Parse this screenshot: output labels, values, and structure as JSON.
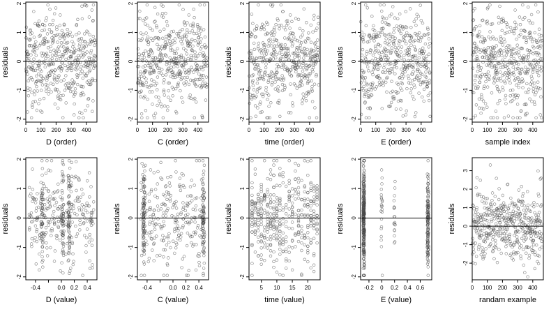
{
  "chart_data": [
    {
      "type": "scatter",
      "xlabel": "D (order)",
      "ylabel": "residuals",
      "xlim": [
        0,
        470
      ],
      "ylim": [
        -2.1,
        2.05
      ],
      "xticks": [
        0,
        100,
        200,
        300,
        400
      ],
      "yticks": [
        -2,
        -1,
        0,
        1,
        2
      ],
      "x_dist": "index",
      "ref_line": 0,
      "n_points": 460
    },
    {
      "type": "scatter",
      "xlabel": "C (order)",
      "ylabel": "residuals",
      "xlim": [
        0,
        470
      ],
      "ylim": [
        -2.1,
        2.05
      ],
      "xticks": [
        0,
        100,
        200,
        300,
        400
      ],
      "yticks": [
        -2,
        -1,
        0,
        1,
        2
      ],
      "x_dist": "index",
      "ref_line": 0,
      "n_points": 460
    },
    {
      "type": "scatter",
      "xlabel": "time (order)",
      "ylabel": "residuals",
      "xlim": [
        0,
        470
      ],
      "ylim": [
        -2.1,
        2.05
      ],
      "xticks": [
        0,
        100,
        200,
        300,
        400
      ],
      "yticks": [
        -2,
        -1,
        0,
        1,
        2
      ],
      "x_dist": "index",
      "ref_line": 0,
      "n_points": 460
    },
    {
      "type": "scatter",
      "xlabel": "E (order)",
      "ylabel": "residuals",
      "xlim": [
        0,
        470
      ],
      "ylim": [
        -2.1,
        2.05
      ],
      "xticks": [
        0,
        100,
        200,
        300,
        400
      ],
      "yticks": [
        -2,
        -1,
        0,
        1,
        2
      ],
      "x_dist": "index",
      "ref_line": 0,
      "n_points": 460
    },
    {
      "type": "scatter",
      "xlabel": "sample index",
      "ylabel": "residuals",
      "xlim": [
        0,
        470
      ],
      "ylim": [
        -2.1,
        2.05
      ],
      "xticks": [
        0,
        100,
        200,
        300,
        400
      ],
      "yticks": [
        -2,
        -1,
        0,
        1,
        2
      ],
      "x_dist": "index",
      "ref_line": 0,
      "n_points": 460
    },
    {
      "type": "scatter",
      "xlabel": "D (value)",
      "ylabel": "residuals",
      "xlim": [
        -0.55,
        0.55
      ],
      "ylim": [
        -2.1,
        2.05
      ],
      "xticks": [
        -0.4,
        -0.2,
        0.0,
        0.2,
        0.4
      ],
      "xtick_labels": [
        "-0.4",
        "",
        "0.0",
        "0.2",
        "0.4"
      ],
      "yticks": [
        -2,
        -1,
        0,
        1,
        2
      ],
      "x_dist": "uniform",
      "x_range": [
        -0.5,
        0.5
      ],
      "x_clusters": [
        -0.3,
        0.02,
        0.12
      ],
      "ref_line": 0,
      "n_points": 420
    },
    {
      "type": "scatter",
      "xlabel": "C (value)",
      "ylabel": "residuals",
      "xlim": [
        -0.55,
        0.55
      ],
      "ylim": [
        -2.1,
        2.05
      ],
      "xticks": [
        -0.4,
        -0.2,
        0.0,
        0.2,
        0.4
      ],
      "xtick_labels": [
        "-0.4",
        "",
        "0.0",
        "0.2",
        "0.4"
      ],
      "yticks": [
        -2,
        -1,
        0,
        1,
        2
      ],
      "x_dist": "uniform",
      "x_range": [
        -0.5,
        0.5
      ],
      "x_clusters": [
        -0.45,
        0.47
      ],
      "ref_line": 0,
      "n_points": 420
    },
    {
      "type": "scatter",
      "xlabel": "time (value)",
      "ylabel": "residuals",
      "xlim": [
        1,
        24
      ],
      "ylim": [
        -2.1,
        2.05
      ],
      "xticks": [
        5,
        10,
        15,
        20
      ],
      "yticks": [
        -2,
        -1,
        0,
        1,
        2
      ],
      "x_dist": "discrete",
      "x_values": [
        2,
        3,
        4,
        5,
        6,
        7,
        8,
        9,
        10,
        11,
        12,
        13,
        14,
        15,
        16,
        17,
        18,
        19,
        20,
        21,
        22,
        23
      ],
      "ref_line": 0,
      "n_points": 420
    },
    {
      "type": "scatter",
      "xlabel": "E (value)",
      "ylabel": "residuals",
      "xlim": [
        -0.33,
        0.78
      ],
      "ylim": [
        -2.1,
        2.05
      ],
      "xticks": [
        -0.2,
        0.0,
        0.2,
        0.4,
        0.6
      ],
      "yticks": [
        -2,
        -1,
        0,
        1,
        2
      ],
      "x_dist": "grouped",
      "x_groups": [
        {
          "x": -0.28,
          "share": 0.55
        },
        {
          "x": 0.72,
          "share": 0.35
        },
        {
          "x": 0.2,
          "share": 0.05
        },
        {
          "x": 0.0,
          "share": 0.05
        }
      ],
      "ref_line": 0,
      "n_points": 420
    },
    {
      "type": "scatter",
      "xlabel": "randam example",
      "ylabel": "residuals",
      "xlim": [
        0,
        470
      ],
      "ylim": [
        -2.9,
        3.7
      ],
      "xticks": [
        0,
        100,
        200,
        300,
        400
      ],
      "yticks": [
        -2,
        -1,
        0,
        1,
        2,
        3
      ],
      "x_dist": "index",
      "ref_line": 0,
      "n_points": 460
    }
  ]
}
